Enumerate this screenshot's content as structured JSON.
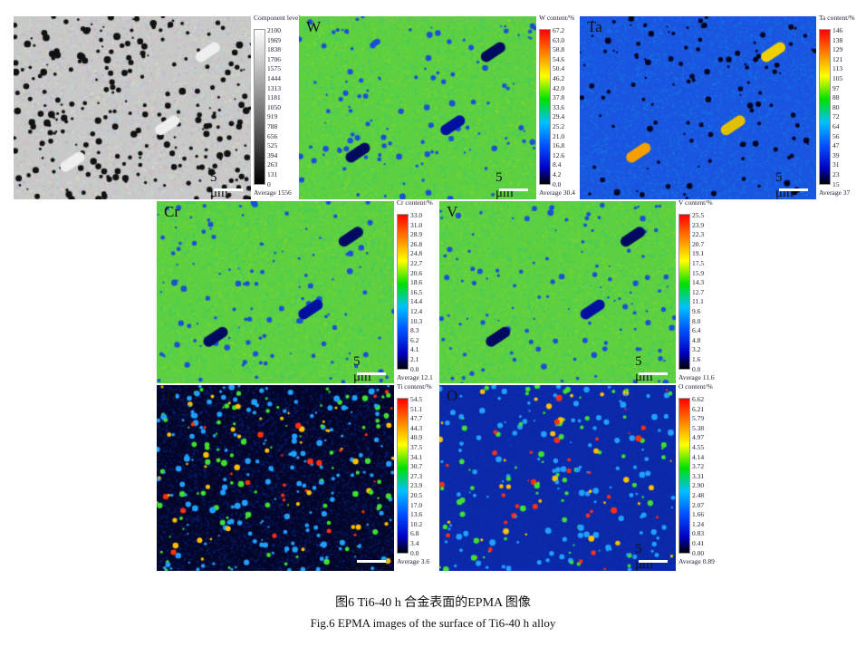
{
  "panels": [
    {
      "id": "component",
      "label": "",
      "cb_title": "Component level",
      "ticks": [
        "2100",
        "1969",
        "1838",
        "1706",
        "1575",
        "1444",
        "1313",
        "1181",
        "1050",
        "919",
        "788",
        "656",
        "525",
        "394",
        "263",
        "131",
        "0"
      ],
      "average": "Average 1556",
      "scale": "5 μm",
      "colormap": "grayscale"
    },
    {
      "id": "W",
      "label": "W",
      "cb_title": "W content/%",
      "ticks": [
        "67.2",
        "63.0",
        "58.8",
        "54.6",
        "50.4",
        "46.2",
        "42.0",
        "37.8",
        "33.6",
        "29.4",
        "25.2",
        "21.0",
        "16.8",
        "12.6",
        "8.4",
        "4.2",
        "0.0"
      ],
      "average": "Average 30.4",
      "scale": "5 μm",
      "colormap": "jet"
    },
    {
      "id": "Ta",
      "label": "Ta",
      "cb_title": "Ta content/%",
      "ticks": [
        "146",
        "138",
        "129",
        "121",
        "113",
        "105",
        "97",
        "88",
        "80",
        "72",
        "64",
        "56",
        "47",
        "39",
        "31",
        "23",
        "15"
      ],
      "average": "Average 37",
      "scale": "5 μm",
      "colormap": "jet"
    },
    {
      "id": "Cr",
      "label": "Cr",
      "cb_title": "Cr content/%",
      "ticks": [
        "33.0",
        "31.0",
        "28.9",
        "26.8",
        "24.8",
        "22.7",
        "20.6",
        "18.6",
        "16.5",
        "14.4",
        "12.4",
        "10.3",
        "8.3",
        "6.2",
        "4.1",
        "2.1",
        "0.0"
      ],
      "average": "Average 12.1",
      "scale": "5 μm",
      "colormap": "jet"
    },
    {
      "id": "V",
      "label": "V",
      "cb_title": "V content/%",
      "ticks": [
        "25.5",
        "23.9",
        "22.3",
        "20.7",
        "19.1",
        "17.5",
        "15.9",
        "14.3",
        "12.7",
        "11.1",
        "9.6",
        "8.0",
        "6.4",
        "4.8",
        "3.2",
        "1.6",
        "0.0"
      ],
      "average": "Average 11.6",
      "scale": "5 μm",
      "colormap": "jet"
    },
    {
      "id": "Ti",
      "label": "Ti",
      "cb_title": "Ti content/%",
      "ticks": [
        "54.5",
        "51.1",
        "47.7",
        "44.3",
        "40.9",
        "37.5",
        "34.1",
        "30.7",
        "27.3",
        "23.9",
        "20.5",
        "17.0",
        "13.6",
        "10.2",
        "6.8",
        "3.4",
        "0.0"
      ],
      "average": "Average 3.6",
      "scale": "5 μm",
      "colormap": "jet"
    },
    {
      "id": "O",
      "label": "O",
      "cb_title": "O content/%",
      "ticks": [
        "6.62",
        "6.21",
        "5.79",
        "5.38",
        "4.97",
        "4.55",
        "4.14",
        "3.72",
        "3.31",
        "2.90",
        "2.48",
        "2.07",
        "1.66",
        "1.24",
        "0.83",
        "0.41",
        "0.00"
      ],
      "average": "Average 0.89",
      "scale": "5 μm",
      "colormap": "jet"
    }
  ],
  "caption": {
    "cn": "图6  Ti6-40 h 合金表面的EPMA 图像",
    "en": "Fig.6   EPMA images of the surface of Ti6-40  h alloy"
  }
}
